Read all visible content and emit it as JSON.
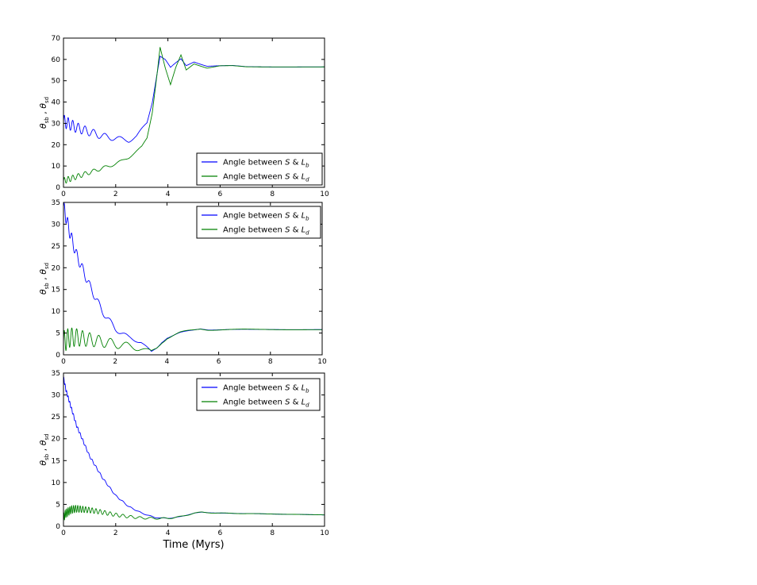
{
  "figure": {
    "xlabel": "Time (Myrs)",
    "ylabel": "θsb , θsd"
  },
  "colors": {
    "series_1": "#0000ff",
    "series_2": "#008000",
    "axes": "#000000",
    "background": "#ffffff"
  },
  "chart_data": [
    {
      "type": "line",
      "title": "",
      "xlabel": "",
      "ylabel": "θsb , θsd",
      "xlim": [
        0,
        10
      ],
      "ylim": [
        0,
        70
      ],
      "x_ticks": [
        "0",
        "2",
        "4",
        "6",
        "8",
        "10"
      ],
      "y_ticks": [
        "0",
        "10",
        "20",
        "30",
        "40",
        "50",
        "60",
        "70"
      ],
      "legend": {
        "loc": "lower-right"
      },
      "grid": false,
      "series": [
        {
          "name": "Angle between S & L_b",
          "x": [
            0,
            0.5,
            1,
            1.5,
            2,
            2.5,
            2.8,
            3.0,
            3.2,
            3.4,
            3.6,
            3.7,
            3.9,
            4.1,
            4.3,
            4.5,
            4.7,
            5.0,
            5.5,
            6,
            6.5,
            7,
            8,
            9,
            10
          ],
          "y": [
            31,
            28,
            26,
            24,
            23,
            22,
            24,
            27,
            30,
            40,
            55,
            62,
            60,
            56,
            58,
            60,
            57,
            59,
            57,
            57,
            57,
            56.5,
            56.5,
            56.5,
            56.5
          ],
          "oscillation_amplitude_start": 3,
          "oscillation_period_start": 0.13
        },
        {
          "name": "Angle between S & L_d",
          "x": [
            0,
            0.5,
            1,
            1.5,
            2,
            2.5,
            2.8,
            3.0,
            3.2,
            3.4,
            3.6,
            3.7,
            3.9,
            4.1,
            4.3,
            4.5,
            4.7,
            5.0,
            5.5,
            6,
            6.5,
            7,
            8,
            9,
            10
          ],
          "y": [
            3,
            5,
            7,
            9,
            11,
            14,
            17,
            19,
            23,
            35,
            55,
            66,
            56,
            48,
            56,
            62,
            55,
            58,
            56,
            57,
            57,
            56.5,
            56.5,
            56.5,
            56.5
          ],
          "oscillation_amplitude_start": 1.5,
          "oscillation_period_start": 0.13
        }
      ]
    },
    {
      "type": "line",
      "title": "",
      "xlabel": "",
      "ylabel": "θsb , θsd",
      "xlim": [
        0,
        10
      ],
      "ylim": [
        0,
        35
      ],
      "x_ticks": [
        "0",
        "2",
        "4",
        "6",
        "8",
        "10"
      ],
      "y_ticks": [
        "0",
        "5",
        "10",
        "15",
        "20",
        "25",
        "30",
        "35"
      ],
      "legend": {
        "loc": "upper-right"
      },
      "grid": false,
      "series": [
        {
          "name": "Angle between S & L_b",
          "x": [
            0,
            0.25,
            0.5,
            1.0,
            1.5,
            2.0,
            2.5,
            3.0,
            3.4,
            3.6,
            3.8,
            4.0,
            4.5,
            5.0,
            5.3,
            5.6,
            6.0,
            7,
            8,
            9,
            10
          ],
          "y": [
            34,
            28,
            23,
            16,
            10,
            6,
            4,
            3,
            0.5,
            1.5,
            3,
            4,
            5,
            5.6,
            6,
            5.8,
            5.8,
            5.8,
            5.8,
            5.8,
            5.8
          ],
          "oscillation_amplitude_start": 1.5,
          "oscillation_period_start": 0.12
        },
        {
          "name": "Angle between S & L_d",
          "x": [
            0,
            0.25,
            0.5,
            1.0,
            1.5,
            2.0,
            2.5,
            3.0,
            3.4,
            3.6,
            3.8,
            4.0,
            4.5,
            5.0,
            5.3,
            5.6,
            6.0,
            7,
            8,
            9,
            10
          ],
          "y": [
            3,
            4,
            4,
            3.5,
            3,
            2.5,
            2,
            1.5,
            0.5,
            1.5,
            3,
            4,
            5,
            5.6,
            6,
            5.8,
            5.8,
            5.8,
            5.8,
            5.8,
            5.8
          ],
          "oscillation_amplitude_start": 2.5,
          "oscillation_period_start": 0.12
        }
      ]
    },
    {
      "type": "line",
      "title": "",
      "xlabel": "Time (Myrs)",
      "ylabel": "θsb , θsd",
      "xlim": [
        0,
        10
      ],
      "ylim": [
        0,
        35
      ],
      "x_ticks": [
        "0",
        "2",
        "4",
        "6",
        "8",
        "10"
      ],
      "y_ticks": [
        "0",
        "5",
        "10",
        "15",
        "20",
        "25",
        "30",
        "35"
      ],
      "legend": {
        "loc": "upper-right"
      },
      "grid": false,
      "series": [
        {
          "name": "Angle between S & L_b",
          "x": [
            0,
            0.1,
            0.3,
            0.5,
            1.0,
            1.5,
            2.0,
            2.5,
            3.0,
            3.5,
            4.0,
            4.5,
            5.0,
            5.3,
            5.6,
            6.0,
            7,
            8,
            9,
            10
          ],
          "y": [
            34,
            31,
            27,
            23,
            16,
            11,
            7,
            4.5,
            3,
            2,
            1.8,
            2.2,
            3,
            3.2,
            3.1,
            3,
            2.9,
            2.8,
            2.7,
            2.6
          ],
          "oscillation_amplitude_start": 0.4,
          "oscillation_period_start": 0.05
        },
        {
          "name": "Angle between S & L_d",
          "x": [
            0,
            0.1,
            0.3,
            0.5,
            1.0,
            1.5,
            2.0,
            2.5,
            3.0,
            3.5,
            4.0,
            4.5,
            5.0,
            5.3,
            5.6,
            6.0,
            7,
            8,
            9,
            10
          ],
          "y": [
            2,
            3,
            3.8,
            4,
            3.7,
            3.2,
            2.6,
            2.2,
            1.9,
            1.8,
            1.8,
            2.2,
            3,
            3.2,
            3.1,
            3,
            2.9,
            2.8,
            2.7,
            2.6
          ],
          "oscillation_amplitude_start": 1.0,
          "oscillation_period_start": 0.05
        }
      ]
    }
  ]
}
